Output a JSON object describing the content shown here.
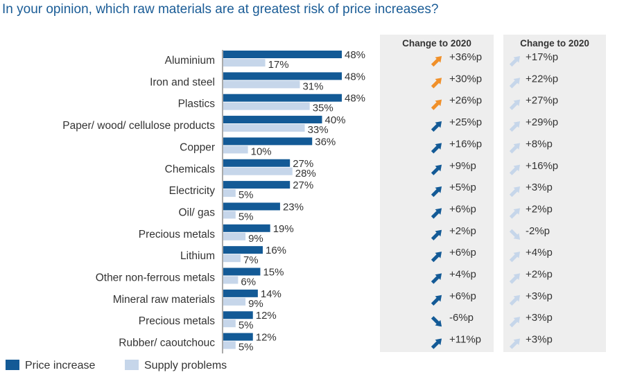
{
  "title": "In your opinion, which raw materials are at greatest risk of price increases?",
  "colors": {
    "price_increase": "#135a96",
    "supply_problems": "#c6d6ea",
    "arrow_orange": "#f0902a",
    "arrow_blue": "#135a96",
    "arrow_light": "#c6d6ea",
    "title": "#1a5c96"
  },
  "panels": {
    "price_header": "Change to 2020",
    "supply_header": "Change to 2020"
  },
  "legend": {
    "price_increase": "Price increase",
    "supply_problems": "Supply problems"
  },
  "chart_data": {
    "type": "bar",
    "orientation": "horizontal",
    "xlim": [
      0,
      48
    ],
    "categories": [
      "Aluminium",
      "Iron and steel",
      "Plastics",
      "Paper/ wood/ cellulose products",
      "Copper",
      "Chemicals",
      "Electricity",
      "Oil/ gas",
      "Precious metals",
      "Lithium",
      "Other non-ferrous metals",
      "Mineral raw materials",
      "Precious metals",
      "Rubber/ caoutchouc"
    ],
    "series": [
      {
        "name": "Price increase",
        "values": [
          48,
          48,
          48,
          40,
          36,
          27,
          27,
          23,
          19,
          16,
          15,
          14,
          12,
          12
        ],
        "labels": [
          "48%",
          "48%",
          "48%",
          "40%",
          "36%",
          "27%",
          "27%",
          "23%",
          "19%",
          "16%",
          "15%",
          "14%",
          "12%",
          "12%"
        ],
        "change_to_2020": [
          "+36%p",
          "+30%p",
          "+26%p",
          "+25%p",
          "+16%p",
          "+9%p",
          "+5%p",
          "+6%p",
          "+2%p",
          "+6%p",
          "+4%p",
          "+6%p",
          "-6%p",
          "+11%p"
        ],
        "change_arrow_color": [
          "orange",
          "orange",
          "orange",
          "blue",
          "blue",
          "blue",
          "blue",
          "blue",
          "blue",
          "blue",
          "blue",
          "blue",
          "blue",
          "blue"
        ]
      },
      {
        "name": "Supply problems",
        "values": [
          17,
          31,
          35,
          33,
          10,
          28,
          5,
          5,
          9,
          7,
          6,
          9,
          5,
          5
        ],
        "labels": [
          "17%",
          "31%",
          "35%",
          "33%",
          "10%",
          "28%",
          "5%",
          "5%",
          "9%",
          "7%",
          "6%",
          "9%",
          "5%",
          "5%"
        ],
        "change_to_2020": [
          "+17%p",
          "+22%p",
          "+27%p",
          "+29%p",
          "+8%p",
          "+16%p",
          "+3%p",
          "+2%p",
          "-2%p",
          "+4%p",
          "+2%p",
          "+3%p",
          "+3%p",
          "+3%p"
        ]
      }
    ],
    "legend_position": "bottom-left",
    "grid": false
  }
}
